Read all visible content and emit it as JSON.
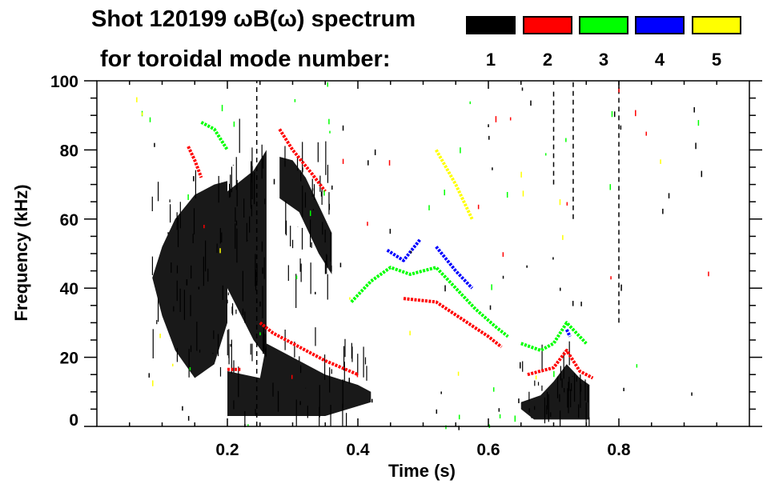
{
  "chart_data": {
    "type": "heatmap",
    "title_line1": "Shot 120199 ωB(ω) spectrum",
    "title_line2": "for toroidal mode number:",
    "xlabel": "Time (s)",
    "ylabel": "Frequency (kHz)",
    "xlim": [
      0,
      1.0
    ],
    "ylim": [
      0,
      100
    ],
    "xticks": [
      0.2,
      0.4,
      0.6,
      0.8
    ],
    "xtick_labels": [
      "0.2",
      "0.4",
      "0.6",
      "0.8"
    ],
    "yticks": [
      0,
      20,
      40,
      60,
      80,
      100
    ],
    "ytick_labels": [
      "0",
      "20",
      "40",
      "60",
      "80",
      "100"
    ],
    "legend": [
      {
        "label": "1",
        "color": "#000000"
      },
      {
        "label": "2",
        "color": "#ff0000"
      },
      {
        "label": "3",
        "color": "#00ff00"
      },
      {
        "label": "4",
        "color": "#0000ff"
      },
      {
        "label": "5",
        "color": "#ffff00"
      }
    ],
    "regions": [
      {
        "mode": 1,
        "points": [
          [
            0.085,
            43
          ],
          [
            0.1,
            52
          ],
          [
            0.12,
            60
          ],
          [
            0.15,
            67
          ],
          [
            0.18,
            70
          ],
          [
            0.2,
            71
          ],
          [
            0.2,
            30
          ],
          [
            0.18,
            18
          ],
          [
            0.15,
            14
          ],
          [
            0.12,
            22
          ],
          [
            0.1,
            32
          ]
        ]
      },
      {
        "mode": 1,
        "points": [
          [
            0.2,
            68
          ],
          [
            0.24,
            74
          ],
          [
            0.26,
            80
          ],
          [
            0.26,
            20
          ],
          [
            0.24,
            25
          ],
          [
            0.2,
            40
          ]
        ]
      },
      {
        "mode": 1,
        "points": [
          [
            0.28,
            78
          ],
          [
            0.3,
            77
          ],
          [
            0.32,
            72
          ],
          [
            0.34,
            64
          ],
          [
            0.36,
            56
          ],
          [
            0.36,
            44
          ],
          [
            0.34,
            50
          ],
          [
            0.31,
            62
          ],
          [
            0.28,
            66
          ]
        ]
      },
      {
        "mode": 1,
        "points": [
          [
            0.2,
            3
          ],
          [
            0.2,
            16
          ],
          [
            0.25,
            14
          ],
          [
            0.26,
            24
          ],
          [
            0.3,
            20
          ],
          [
            0.35,
            15
          ],
          [
            0.4,
            12
          ],
          [
            0.42,
            10
          ],
          [
            0.42,
            7
          ],
          [
            0.35,
            3
          ]
        ]
      },
      {
        "mode": 1,
        "points": [
          [
            0.65,
            7
          ],
          [
            0.68,
            9
          ],
          [
            0.7,
            13
          ],
          [
            0.72,
            18
          ],
          [
            0.74,
            14
          ],
          [
            0.755,
            12
          ],
          [
            0.755,
            2
          ],
          [
            0.67,
            2
          ],
          [
            0.65,
            5
          ]
        ]
      }
    ],
    "lines": [
      {
        "mode": 2,
        "points": [
          [
            0.2,
            16.5
          ],
          [
            0.22,
            16.5
          ]
        ]
      },
      {
        "mode": 2,
        "points": [
          [
            0.25,
            30
          ],
          [
            0.27,
            27
          ],
          [
            0.3,
            24
          ],
          [
            0.35,
            19
          ],
          [
            0.4,
            15
          ]
        ]
      },
      {
        "mode": 2,
        "points": [
          [
            0.28,
            86
          ],
          [
            0.3,
            80
          ],
          [
            0.33,
            73
          ],
          [
            0.35,
            68
          ]
        ]
      },
      {
        "mode": 2,
        "points": [
          [
            0.14,
            81
          ],
          [
            0.15,
            77
          ],
          [
            0.16,
            72
          ]
        ]
      },
      {
        "mode": 2,
        "points": [
          [
            0.47,
            37
          ],
          [
            0.52,
            36
          ],
          [
            0.56,
            31
          ],
          [
            0.6,
            26
          ],
          [
            0.62,
            23
          ]
        ]
      },
      {
        "mode": 2,
        "points": [
          [
            0.66,
            15
          ],
          [
            0.7,
            17
          ],
          [
            0.72,
            22
          ],
          [
            0.74,
            16
          ],
          [
            0.76,
            14
          ]
        ]
      },
      {
        "mode": 3,
        "points": [
          [
            0.39,
            36
          ],
          [
            0.42,
            42
          ],
          [
            0.45,
            46
          ],
          [
            0.48,
            44
          ],
          [
            0.52,
            46
          ],
          [
            0.55,
            40
          ],
          [
            0.58,
            34
          ],
          [
            0.61,
            29
          ],
          [
            0.63,
            26
          ]
        ]
      },
      {
        "mode": 3,
        "points": [
          [
            0.16,
            88
          ],
          [
            0.18,
            86
          ],
          [
            0.2,
            80
          ]
        ]
      },
      {
        "mode": 3,
        "points": [
          [
            0.65,
            24
          ],
          [
            0.68,
            22
          ],
          [
            0.7,
            24
          ],
          [
            0.72,
            30
          ],
          [
            0.75,
            24
          ]
        ]
      },
      {
        "mode": 4,
        "points": [
          [
            0.445,
            51
          ],
          [
            0.47,
            48
          ],
          [
            0.495,
            54
          ]
        ]
      },
      {
        "mode": 4,
        "points": [
          [
            0.52,
            52
          ],
          [
            0.55,
            45
          ],
          [
            0.575,
            40
          ]
        ]
      },
      {
        "mode": 4,
        "points": [
          [
            0.72,
            28
          ],
          [
            0.725,
            26
          ]
        ]
      },
      {
        "mode": 5,
        "points": [
          [
            0.52,
            80
          ],
          [
            0.55,
            70
          ],
          [
            0.575,
            60
          ]
        ]
      }
    ],
    "spikes": [
      {
        "mode": 1,
        "t": 0.8,
        "f_range": [
          30,
          100
        ]
      },
      {
        "mode": 1,
        "t": 0.73,
        "f_range": [
          60,
          100
        ]
      },
      {
        "mode": 1,
        "t": 0.7,
        "f_range": [
          70,
          98
        ]
      },
      {
        "mode": 1,
        "t": 0.245,
        "f_range": [
          0,
          100
        ]
      }
    ]
  }
}
